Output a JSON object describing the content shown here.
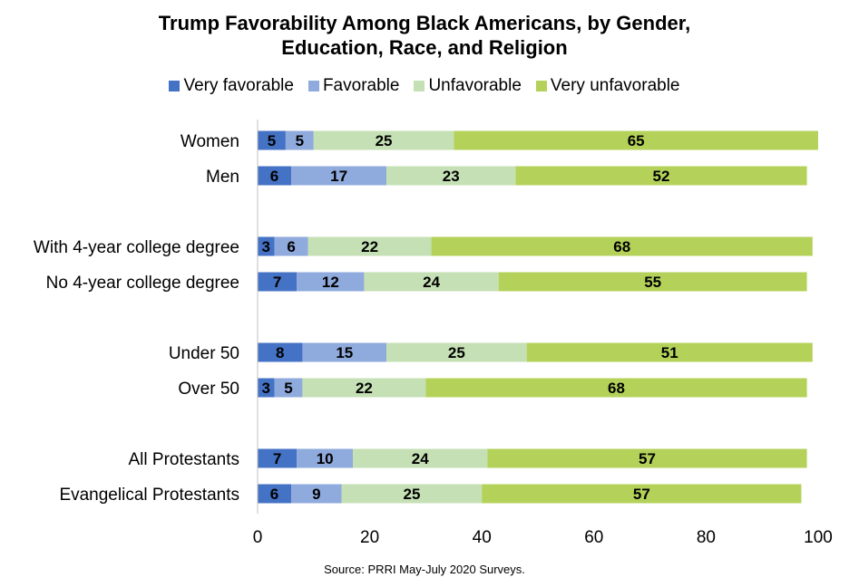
{
  "chart_data": {
    "type": "bar",
    "orientation": "horizontal",
    "stacked": true,
    "title": "Trump Favorability Among Black Americans, by Gender, Education, Race, and Religion",
    "title_lines": [
      "Trump Favorability Among Black Americans, by Gender,",
      "Education, Race, and Religion"
    ],
    "source": "Source: PRRI May-July 2020 Surveys.",
    "categories": [
      "Women",
      "Men",
      "With 4-year college degree",
      "No 4-year college degree",
      "Under 50",
      "Over 50",
      "All Protestants",
      "Evangelical Protestants"
    ],
    "series": [
      {
        "name": "Very favorable",
        "color": "#4472c4",
        "values": [
          5,
          6,
          3,
          7,
          8,
          3,
          7,
          6
        ]
      },
      {
        "name": "Favorable",
        "color": "#8faadc",
        "values": [
          5,
          17,
          6,
          12,
          15,
          5,
          10,
          9
        ]
      },
      {
        "name": "Unfavorable",
        "color": "#c5e0b4",
        "values": [
          25,
          23,
          22,
          24,
          25,
          22,
          24,
          25
        ]
      },
      {
        "name": "Very unfavorable",
        "color": "#b4d25a",
        "values": [
          65,
          52,
          68,
          55,
          51,
          68,
          57,
          57
        ]
      }
    ],
    "xlim": [
      0,
      100
    ],
    "xticks": [
      0,
      20,
      40,
      60,
      80,
      100
    ],
    "grid": false,
    "legend_position": "top"
  }
}
